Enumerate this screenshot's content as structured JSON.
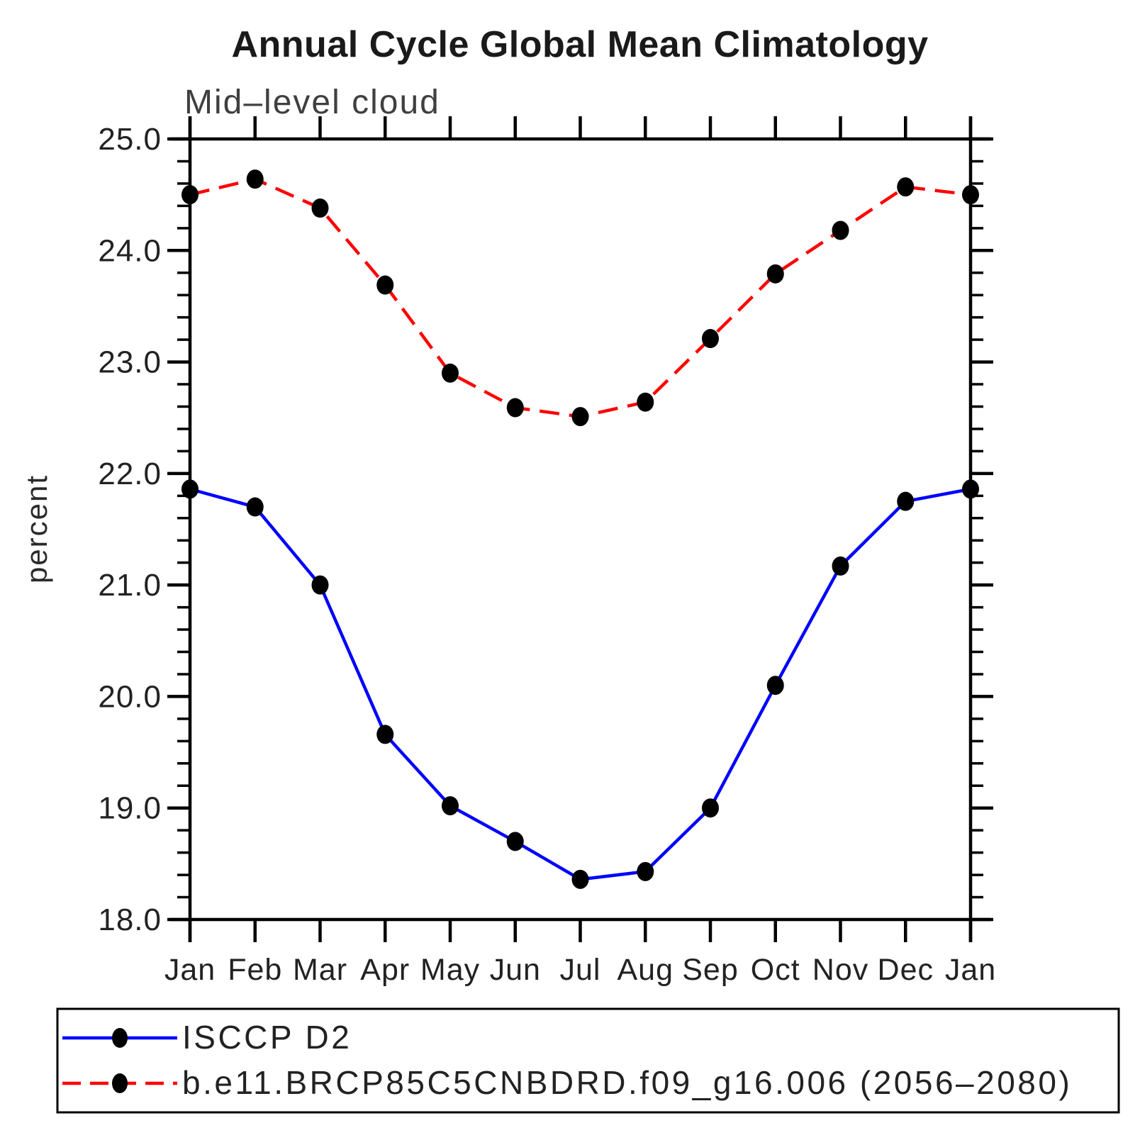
{
  "chart_data": {
    "type": "line",
    "title": "Annual Cycle Global Mean Climatology",
    "subtitle": "Mid–level cloud",
    "ylabel": "percent",
    "xlabel": "",
    "x_categories": [
      "Jan",
      "Feb",
      "Mar",
      "Apr",
      "May",
      "Jun",
      "Jul",
      "Aug",
      "Sep",
      "Oct",
      "Nov",
      "Dec",
      "Jan"
    ],
    "ylim": [
      18.0,
      25.0
    ],
    "y_major_step": 1.0,
    "y_minor_step": 0.2,
    "y_tick_labels": [
      "18.0",
      "19.0",
      "20.0",
      "21.0",
      "22.0",
      "23.0",
      "24.0",
      "25.0"
    ],
    "grid": false,
    "legend_position": "bottom",
    "axis_color": "#000000",
    "marker_shape": "filled-circle",
    "marker_color": "#000000",
    "series": [
      {
        "name": "ISCCP D2",
        "color": "#0000ff",
        "line_style": "solid",
        "values": [
          21.86,
          21.7,
          21.0,
          19.66,
          19.02,
          18.7,
          18.36,
          18.43,
          19.0,
          20.1,
          21.17,
          21.75,
          21.86
        ]
      },
      {
        "name": "b.e11.BRCP85C5CNBDRD.f09_g16.006 (2056–2080)",
        "color": "#ff0000",
        "line_style": "dashed",
        "values": [
          24.5,
          24.64,
          24.38,
          23.69,
          22.9,
          22.59,
          22.51,
          22.64,
          23.21,
          23.79,
          24.18,
          24.57,
          24.5
        ]
      }
    ]
  }
}
